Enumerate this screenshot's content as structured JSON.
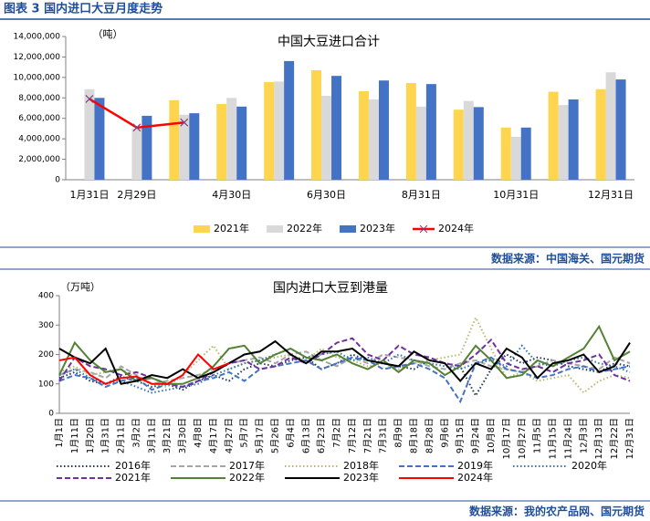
{
  "header": {
    "title": "图表 3  国内进口大豆月度走势"
  },
  "chart_data": [
    {
      "type": "bar",
      "title": "中国大豆进口合计",
      "y_label": "（吨）",
      "categories": [
        "1月31日",
        "2月29日",
        null,
        "4月30日",
        null,
        "6月30日",
        null,
        "8月31日",
        null,
        "10月31日",
        null,
        "12月31日"
      ],
      "ylim": [
        0,
        14000000
      ],
      "yticks": [
        0,
        {
          "value": 2000000,
          "label": "2,000,000"
        },
        {
          "value": 4000000,
          "label": "4,000,000"
        },
        {
          "value": 6000000,
          "label": "6,000,000"
        },
        {
          "value": 8000000,
          "label": "8,000,000"
        },
        {
          "value": 10000000,
          "label": "10,000,000"
        },
        {
          "value": 12000000,
          "label": "12,000,000"
        },
        {
          "value": 14000000,
          "label": "14,000,000"
        }
      ],
      "series": [
        {
          "name": "2021年",
          "color": "#ffd54f",
          "values": [
            null,
            null,
            7770000,
            7400000,
            9550000,
            10700000,
            8650000,
            9450000,
            6850000,
            5100000,
            8600000,
            8850000
          ]
        },
        {
          "name": "2022年",
          "color": "#d9d9d9",
          "values": [
            8850000,
            5000000,
            6350000,
            8000000,
            9600000,
            8200000,
            7850000,
            7150000,
            7700000,
            4200000,
            7300000,
            10500000
          ]
        },
        {
          "name": "2023年",
          "color": "#4472c4",
          "values": [
            8000000,
            6250000,
            6500000,
            7150000,
            11600000,
            10150000,
            9700000,
            9350000,
            7100000,
            5100000,
            7850000,
            9800000
          ]
        },
        {
          "name": "2024年",
          "color": "#ff0000",
          "type": "line",
          "marker": "x",
          "values": [
            7900000,
            5100000,
            5600000,
            null,
            null,
            null,
            null,
            null,
            null,
            null,
            null,
            null
          ]
        }
      ]
    },
    {
      "type": "line",
      "title": "国内进口大豆到港量",
      "y_label": "（万吨）",
      "categories": [
        "1月1日",
        "1月11日",
        "1月20日",
        "1月31日",
        "2月11日",
        "3月2日",
        "3月11日",
        "3月21日",
        "3月30日",
        "4月8日",
        "4月17日",
        "4月27日",
        "5月7日",
        "5月17日",
        "5月26日",
        "6月4日",
        "6月13日",
        "6月23日",
        "7月2日",
        "7月12日",
        "7月21日",
        "7月31日",
        "8月9日",
        "8月18日",
        "8月28日",
        "9月6日",
        "9月15日",
        "9月24日",
        "10月8日",
        "10月17日",
        "10月27日",
        "11月5日",
        "11月15日",
        "11月24日",
        "12月3日",
        "12月13日",
        "12月22日",
        "12月31日"
      ],
      "ylim": [
        0,
        400
      ],
      "yticks": [
        0,
        100,
        200,
        300,
        400
      ],
      "series": [
        {
          "name": "2016年",
          "color": "#1f3864",
          "style": "dotted",
          "values": [
            120,
            140,
            110,
            100,
            125,
            110,
            90,
            100,
            80,
            110,
            130,
            110,
            150,
            170,
            160,
            180,
            190,
            150,
            170,
            200,
            180,
            170,
            160,
            150,
            180,
            170,
            160,
            60,
            150,
            200,
            170,
            190,
            180,
            160,
            150,
            140,
            170,
            160
          ]
        },
        {
          "name": "2017年",
          "color": "#a6a6a6",
          "style": "dashed",
          "values": [
            130,
            150,
            140,
            120,
            160,
            130,
            100,
            110,
            120,
            130,
            150,
            170,
            180,
            190,
            170,
            200,
            210,
            180,
            160,
            190,
            170,
            200,
            190,
            180,
            160,
            150,
            170,
            180,
            160,
            150,
            140,
            160,
            180,
            170,
            160,
            150,
            190,
            170
          ]
        },
        {
          "name": "2018年",
          "color": "#b8b870",
          "style": "dotted",
          "values": [
            140,
            160,
            130,
            140,
            150,
            120,
            100,
            90,
            130,
            180,
            230,
            150,
            170,
            180,
            190,
            200,
            180,
            220,
            190,
            180,
            160,
            170,
            150,
            170,
            180,
            190,
            200,
            325,
            220,
            120,
            140,
            110,
            120,
            130,
            70,
            110,
            130,
            120
          ]
        },
        {
          "name": "2019年",
          "color": "#4472c4",
          "style": "dashed",
          "values": [
            110,
            130,
            120,
            90,
            110,
            120,
            80,
            100,
            90,
            110,
            120,
            140,
            110,
            150,
            160,
            170,
            180,
            150,
            170,
            190,
            180,
            150,
            160,
            170,
            150,
            120,
            40,
            170,
            190,
            150,
            140,
            120,
            130,
            150,
            160,
            140,
            150,
            160
          ]
        },
        {
          "name": "2020年",
          "color": "#2e75b6",
          "style": "dotted",
          "values": [
            130,
            150,
            120,
            100,
            110,
            90,
            70,
            80,
            90,
            100,
            130,
            150,
            170,
            180,
            200,
            220,
            190,
            200,
            210,
            180,
            190,
            170,
            200,
            180,
            170,
            160,
            150,
            170,
            180,
            160,
            230,
            170,
            160,
            180,
            190,
            170,
            160,
            140
          ]
        },
        {
          "name": "2021年",
          "color": "#7030a0",
          "style": "dashed",
          "values": [
            110,
            190,
            160,
            150,
            130,
            140,
            120,
            100,
            90,
            110,
            140,
            170,
            180,
            150,
            160,
            190,
            170,
            200,
            240,
            255,
            200,
            180,
            230,
            200,
            190,
            170,
            160,
            200,
            250,
            170,
            150,
            160,
            140,
            170,
            180,
            200,
            130,
            110
          ]
        },
        {
          "name": "2022年",
          "color": "#548235",
          "style": "solid",
          "values": [
            130,
            240,
            180,
            140,
            150,
            110,
            120,
            100,
            100,
            120,
            160,
            220,
            230,
            170,
            200,
            220,
            190,
            180,
            200,
            170,
            150,
            180,
            140,
            180,
            170,
            130,
            160,
            230,
            180,
            120,
            130,
            180,
            160,
            190,
            220,
            295,
            180,
            210
          ]
        },
        {
          "name": "2023年",
          "color": "#000000",
          "style": "solid",
          "values": [
            220,
            190,
            170,
            220,
            100,
            110,
            130,
            120,
            150,
            120,
            140,
            170,
            200,
            210,
            245,
            200,
            170,
            210,
            210,
            220,
            180,
            170,
            160,
            210,
            180,
            170,
            110,
            170,
            150,
            220,
            190,
            120,
            170,
            180,
            200,
            140,
            160,
            240
          ]
        },
        {
          "name": "2024年",
          "color": "#ff0000",
          "style": "solid",
          "values": [
            180,
            190,
            130,
            100,
            120,
            125,
            100,
            100,
            130,
            200,
            150,
            170,
            null,
            null,
            null,
            null,
            null,
            null,
            null,
            null,
            null,
            null,
            null,
            null,
            null,
            null,
            null,
            null,
            null,
            null,
            null,
            null,
            null,
            null,
            null,
            null,
            null,
            null
          ]
        }
      ]
    }
  ],
  "sources": [
    "数据来源：中国海关、国元期货",
    "数据来源：我的农产品网、国元期货"
  ]
}
